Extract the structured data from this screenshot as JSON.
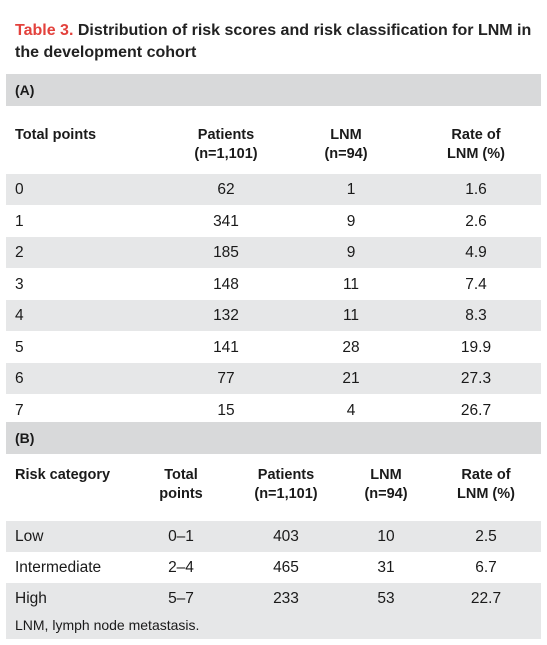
{
  "title": {
    "lead": "Table 3.",
    "text": "Distribution of risk scores and risk classification for LNM in the development cohort"
  },
  "sectionA": {
    "label": "(A)",
    "headers": {
      "total_points": "Total points",
      "patients_l1": "Patients",
      "patients_l2": "(n=1,101)",
      "lnm_l1": "LNM",
      "lnm_l2": "(n=94)",
      "rate_l1": "Rate of",
      "rate_l2": "LNM (%)"
    },
    "rows": [
      {
        "points": "0",
        "patients": "62",
        "lnm": "1",
        "rate": "1.6"
      },
      {
        "points": "1",
        "patients": "341",
        "lnm": "9",
        "rate": "2.6"
      },
      {
        "points": "2",
        "patients": "185",
        "lnm": "9",
        "rate": "4.9"
      },
      {
        "points": "3",
        "patients": "148",
        "lnm": "11",
        "rate": "7.4"
      },
      {
        "points": "4",
        "patients": "132",
        "lnm": "11",
        "rate": "8.3"
      },
      {
        "points": "5",
        "patients": "141",
        "lnm": "28",
        "rate": "19.9"
      },
      {
        "points": "6",
        "patients": "77",
        "lnm": "21",
        "rate": "27.3"
      },
      {
        "points": "7",
        "patients": "15",
        "lnm": "4",
        "rate": "26.7"
      }
    ]
  },
  "sectionB": {
    "label": "(B)",
    "headers": {
      "risk_category": "Risk category",
      "total_l1": "Total",
      "total_l2": "points",
      "patients_l1": "Patients",
      "patients_l2": "(n=1,101)",
      "lnm_l1": "LNM",
      "lnm_l2": "(n=94)",
      "rate_l1": "Rate of",
      "rate_l2": "LNM (%)"
    },
    "rows": [
      {
        "category": "Low",
        "points": "0–1",
        "patients": "403",
        "lnm": "10",
        "rate": "2.5"
      },
      {
        "category": "Intermediate",
        "points": "2–4",
        "patients": "465",
        "lnm": "31",
        "rate": "6.7"
      },
      {
        "category": "High",
        "points": "5–7",
        "patients": "233",
        "lnm": "53",
        "rate": "22.7"
      }
    ]
  },
  "footer": "LNM, lymph node metastasis."
}
